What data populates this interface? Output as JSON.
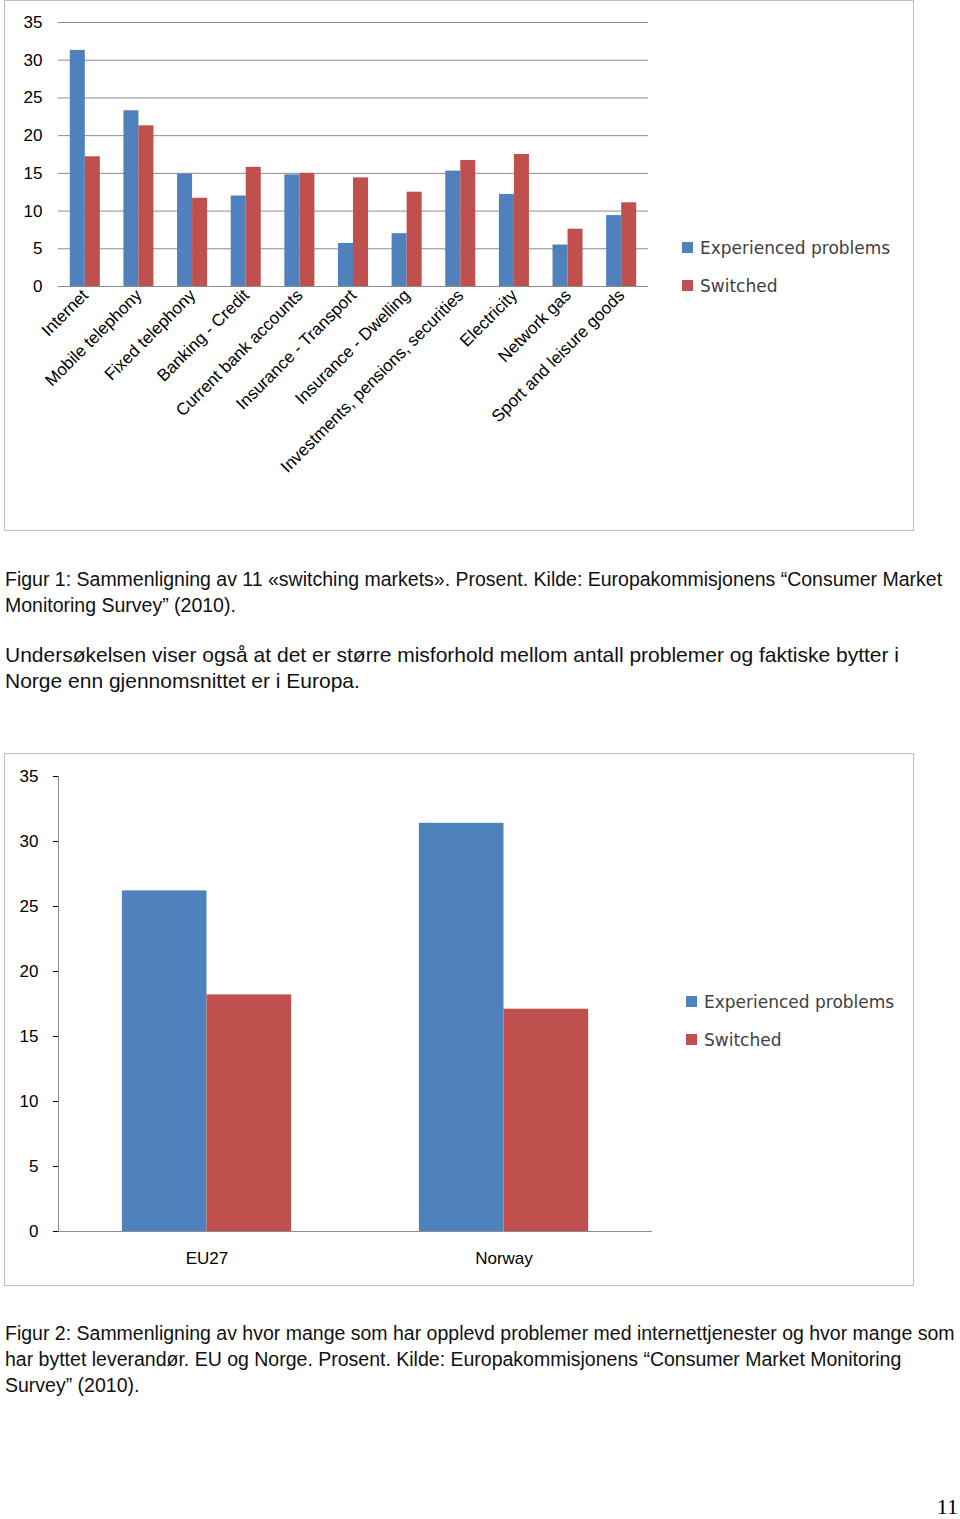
{
  "chart_data": [
    {
      "type": "bar",
      "categories": [
        "Internet",
        "Mobile telephony",
        "Fixed telephony",
        "Banking - Credit",
        "Current bank accounts",
        "Insurance - Transport",
        "Insurance - Dwelling",
        "Investments, pensions, securities",
        "Electricity",
        "Network gas",
        "Sport and leisure goods"
      ],
      "series": [
        {
          "name": "Experienced problems",
          "color": "#4f81bd",
          "values": [
            31.3,
            23.3,
            14.9,
            12.0,
            14.8,
            5.7,
            7.0,
            15.3,
            12.2,
            5.5,
            9.4
          ]
        },
        {
          "name": "Switched",
          "color": "#c0504d",
          "values": [
            17.2,
            21.3,
            11.7,
            15.8,
            15.0,
            14.4,
            12.5,
            16.7,
            17.5,
            7.6,
            11.1
          ]
        }
      ],
      "ylim": [
        0,
        35
      ],
      "yticks": [
        0,
        5,
        10,
        15,
        20,
        25,
        30,
        35
      ],
      "grid": true,
      "legend": "right",
      "caption": "Figur 1: Sammenligning av 11 «switching markets». Prosent. Kilde: Europakommisjonens “Consumer Market Monitoring Survey” (2010)."
    },
    {
      "type": "bar",
      "categories": [
        "EU27",
        "Norway"
      ],
      "series": [
        {
          "name": "Experienced problems",
          "color": "#4f81bd",
          "values": [
            26.2,
            31.4
          ]
        },
        {
          "name": "Switched",
          "color": "#c0504d",
          "values": [
            18.2,
            17.1
          ]
        }
      ],
      "ylim": [
        0,
        35
      ],
      "yticks": [
        0,
        5,
        10,
        15,
        20,
        25,
        30,
        35
      ],
      "grid": false,
      "legend": "right",
      "caption": "Figur 2: Sammenligning av hvor mange som har opplevd problemer med internettjenester og hvor mange som har byttet leverandør. EU og Norge. Prosent. Kilde: Europakommisjonens “Consumer Market Monitoring Survey” (2010)."
    }
  ],
  "paragraph": "Undersøkelsen viser også at det er større misforhold mellom antall problemer og faktiske bytter i Norge enn gjennomsnittet er i Europa.",
  "page_number": "11"
}
